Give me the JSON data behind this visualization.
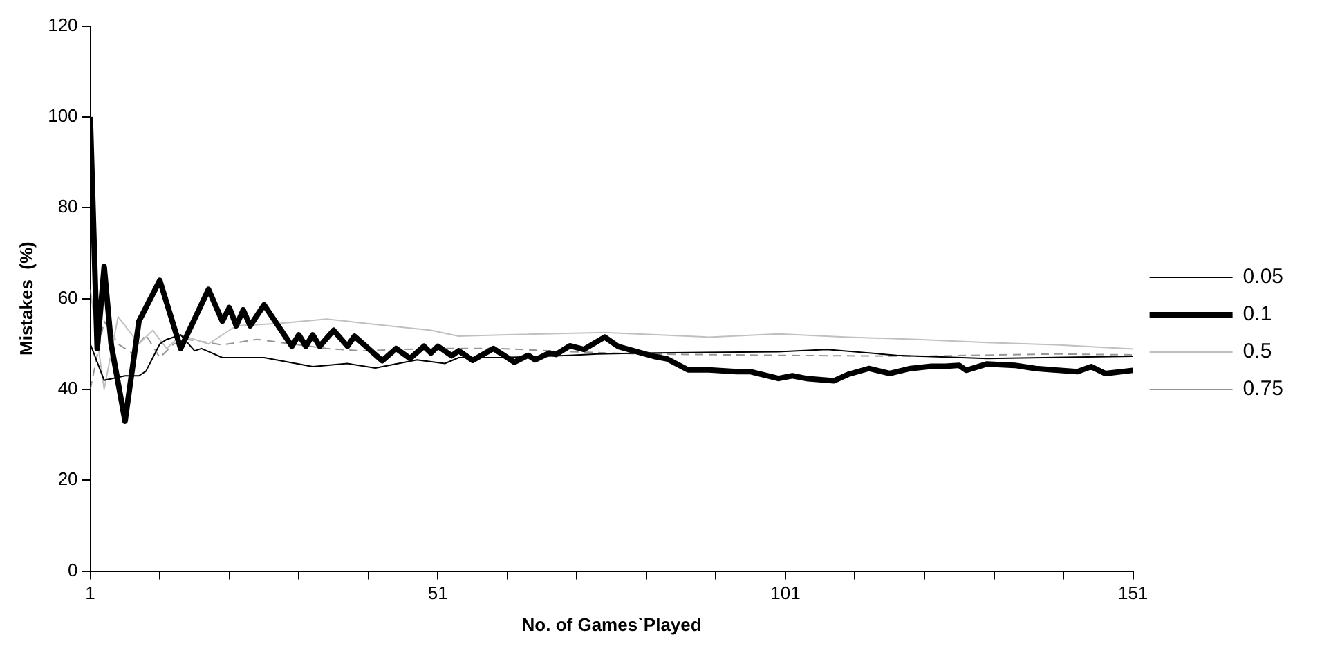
{
  "chart_data": {
    "type": "line",
    "xlabel": "No. of Games`Played",
    "ylabel": "Mistakes  (%)",
    "xlim": [
      1,
      151
    ],
    "xticks": [
      1,
      {
        "value": 11,
        "label": null
      },
      {
        "value": 21,
        "label": null
      },
      {
        "value": 31,
        "label": null
      },
      {
        "value": 41,
        "label": null
      },
      51,
      {
        "value": 61,
        "label": null
      },
      {
        "value": 71,
        "label": null
      },
      {
        "value": 81,
        "label": null
      },
      {
        "value": 91,
        "label": null
      },
      101,
      {
        "value": 111,
        "label": null
      },
      {
        "value": 121,
        "label": null
      },
      {
        "value": 131,
        "label": null
      },
      {
        "value": 141,
        "label": null
      },
      151
    ],
    "ylim": [
      0,
      120
    ],
    "yticks": [
      0,
      20,
      40,
      60,
      80,
      100,
      120
    ],
    "grid": false,
    "legend": "right",
    "marker": "none",
    "series": [
      {
        "name": "0.05",
        "color": "#000000",
        "line_style": "solid",
        "x": [
          1,
          3,
          6,
          8,
          9,
          11,
          12,
          14,
          16,
          17,
          20,
          26,
          33,
          38,
          42,
          48,
          52,
          54,
          60,
          70,
          74,
          80,
          100,
          107,
          117,
          130,
          151
        ],
        "values": [
          50,
          42,
          43,
          43,
          44,
          50,
          51,
          52,
          48.5,
          49,
          47,
          47,
          45,
          45.7,
          44.7,
          46.5,
          45.7,
          47,
          47,
          47.5,
          47.8,
          48,
          48.3,
          48.8,
          47.5,
          46.8,
          47.3
        ]
      },
      {
        "name": "0.1",
        "color": "#000000",
        "line_style": "solid",
        "x": [
          1,
          2,
          3,
          4,
          6,
          8,
          11,
          14,
          18,
          20,
          21,
          22,
          23,
          24,
          26,
          30,
          31,
          32,
          33,
          34,
          36,
          38,
          39,
          43,
          45,
          47,
          49,
          50,
          51,
          53,
          54,
          56,
          59,
          62,
          64,
          65,
          67,
          68,
          70,
          72,
          75,
          77,
          82,
          84,
          87,
          90,
          94,
          96,
          100,
          102,
          104,
          108,
          110,
          113,
          116,
          119,
          122,
          124,
          126,
          127,
          130,
          134,
          137,
          143,
          145,
          147,
          151
        ],
        "values": [
          100,
          49,
          67,
          50,
          33,
          55,
          64,
          49,
          62,
          55,
          58,
          54,
          57.5,
          54,
          58.6,
          49.5,
          52,
          49.5,
          52,
          49.5,
          53,
          49.5,
          51.7,
          46.3,
          49,
          46.8,
          49.5,
          48,
          49.5,
          47.4,
          48.5,
          46.4,
          49,
          46,
          47.5,
          46.5,
          48,
          47.7,
          49.6,
          48.8,
          51.5,
          49.4,
          47.3,
          46.7,
          44.3,
          44.3,
          43.9,
          43.9,
          42.4,
          43,
          42.4,
          41.9,
          43.3,
          44.6,
          43.5,
          44.6,
          45.1,
          45.1,
          45.3,
          44.2,
          45.6,
          45.3,
          44.6,
          43.9,
          45,
          43.5,
          44.2
        ]
      },
      {
        "name": "0.5",
        "color": "#c0c0c0",
        "line_style": "solid",
        "x": [
          1,
          3,
          5,
          8,
          10,
          12,
          14,
          18,
          22,
          28,
          35,
          42,
          50,
          54,
          60,
          75,
          90,
          100,
          110,
          120,
          130,
          140,
          151
        ],
        "values": [
          62,
          40,
          56,
          50,
          53,
          49,
          52,
          50,
          54,
          54.5,
          55.5,
          54.3,
          53,
          51.7,
          52,
          52.5,
          51.5,
          52.2,
          51.5,
          51,
          50.3,
          49.8,
          48.9
        ]
      },
      {
        "name": "0.75",
        "color": "#969696",
        "line_style": "dashed",
        "x": [
          1,
          3,
          5,
          7,
          9,
          11,
          13,
          15,
          20,
          25,
          30,
          35,
          40,
          50,
          60,
          70,
          80,
          100,
          120,
          140,
          151
        ],
        "values": [
          40,
          55,
          50,
          48,
          52,
          47,
          50,
          51,
          49.8,
          51,
          50,
          49,
          48.5,
          49,
          49,
          48.3,
          47.8,
          47.5,
          47.3,
          47.8,
          47.6
        ]
      }
    ]
  }
}
